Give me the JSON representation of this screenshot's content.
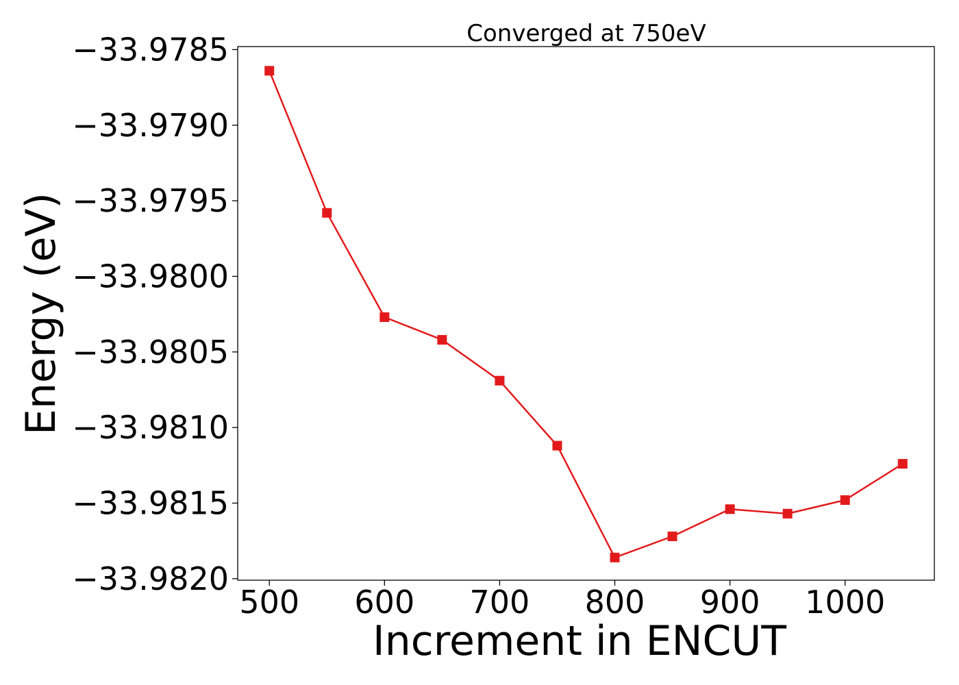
{
  "chart_data": {
    "type": "line",
    "title": "Converged at 750eV",
    "xlabel": "Increment in ENCUT",
    "ylabel": "Energy (eV)",
    "x": [
      500,
      550,
      600,
      650,
      700,
      750,
      800,
      850,
      900,
      950,
      1000,
      1050
    ],
    "series": [
      {
        "values": [
          -33.97864,
          -33.97958,
          -33.98027,
          -33.98042,
          -33.98069,
          -33.98112,
          -33.98186,
          -33.98172,
          -33.98154,
          -33.98157,
          -33.98148,
          -33.98124
        ],
        "color": "#e31a1c",
        "marker": "square"
      }
    ],
    "xlim": [
      472.5,
      1077.5
    ],
    "ylim": [
      -33.98201,
      -33.97848
    ],
    "xticks": [
      500,
      600,
      700,
      800,
      900,
      1000
    ],
    "xtick_labels": [
      "500",
      "600",
      "700",
      "800",
      "900",
      "1000"
    ],
    "yticks": [
      -33.982,
      -33.9815,
      -33.981,
      -33.9805,
      -33.98,
      -33.9795,
      -33.979,
      -33.9785
    ],
    "ytick_labels": [
      "−33.9820",
      "−33.9815",
      "−33.9810",
      "−33.9805",
      "−33.9800",
      "−33.9795",
      "−33.9790",
      "−33.9785"
    ],
    "grid": false,
    "legend": false
  }
}
